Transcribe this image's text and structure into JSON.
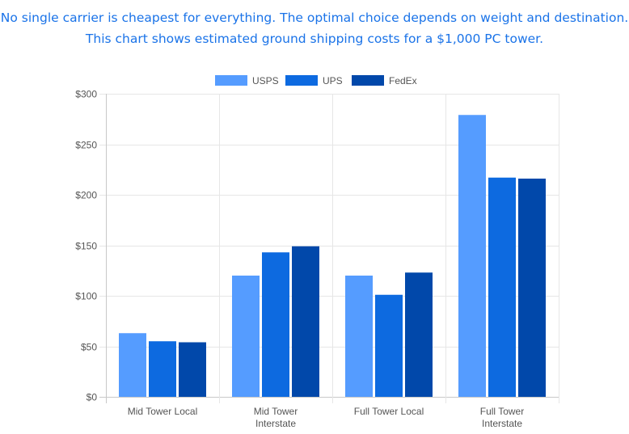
{
  "intro": {
    "line1": "No single carrier is cheapest for everything. The optimal choice depends on weight and destination.",
    "line2": "This chart shows estimated ground shipping costs for a $1,000 PC tower."
  },
  "chart_data": {
    "type": "bar",
    "categories": [
      [
        "Mid Tower Local"
      ],
      [
        "Mid Tower",
        "Interstate"
      ],
      [
        "Full Tower Local"
      ],
      [
        "Full Tower",
        "Interstate"
      ]
    ],
    "series": [
      {
        "name": "USPS",
        "color": "#559cff",
        "values": [
          63,
          120,
          120,
          279
        ]
      },
      {
        "name": "UPS",
        "color": "#0d6ae0",
        "values": [
          55,
          143,
          101,
          217
        ]
      },
      {
        "name": "FedEx",
        "color": "#0148aa",
        "values": [
          54,
          149,
          123,
          216
        ]
      }
    ],
    "ylim": [
      0,
      300
    ],
    "yticks": [
      0,
      50,
      100,
      150,
      200,
      250,
      300
    ],
    "ytick_labels": [
      "$0",
      "$50",
      "$100",
      "$150",
      "$200",
      "$250",
      "$300"
    ],
    "legend_position": "top",
    "grid": true,
    "title": "",
    "xlabel": "",
    "ylabel": ""
  }
}
